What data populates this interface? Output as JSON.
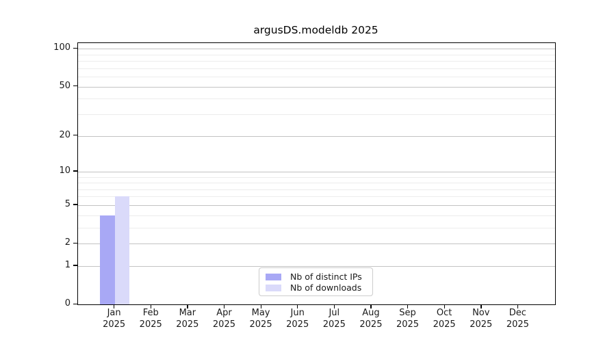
{
  "title": "argusDS.modeldb 2025",
  "chart_data": {
    "type": "bar",
    "title": "argusDS.modeldb 2025",
    "categories": [
      "Jan 2025",
      "Feb 2025",
      "Mar 2025",
      "Apr 2025",
      "May 2025",
      "Jun 2025",
      "Jul 2025",
      "Aug 2025",
      "Sep 2025",
      "Oct 2025",
      "Nov 2025",
      "Dec 2025"
    ],
    "month_labels": [
      "Jan",
      "Feb",
      "Mar",
      "Apr",
      "May",
      "Jun",
      "Jul",
      "Aug",
      "Sep",
      "Oct",
      "Nov",
      "Dec"
    ],
    "year_label": "2025",
    "series": [
      {
        "name": "Nb of distinct IPs",
        "color": "#a8a8f5",
        "values": [
          4,
          0,
          0,
          0,
          0,
          0,
          0,
          0,
          0,
          0,
          0,
          0
        ]
      },
      {
        "name": "Nb of downloads",
        "color": "#dadafa",
        "values": [
          6,
          0,
          0,
          0,
          0,
          0,
          0,
          0,
          0,
          0,
          0,
          0
        ]
      }
    ],
    "xlabel": "",
    "ylabel": "",
    "y_axis": {
      "scale": "log1p",
      "ylim": [
        0,
        111
      ],
      "major_ticks": [
        0,
        1,
        2,
        5,
        10,
        20,
        50,
        100
      ],
      "minor_gridlines": [
        3,
        4,
        6,
        7,
        8,
        9,
        30,
        40,
        60,
        70,
        80,
        90
      ]
    },
    "grid": "both",
    "legend_position": "lower center"
  }
}
